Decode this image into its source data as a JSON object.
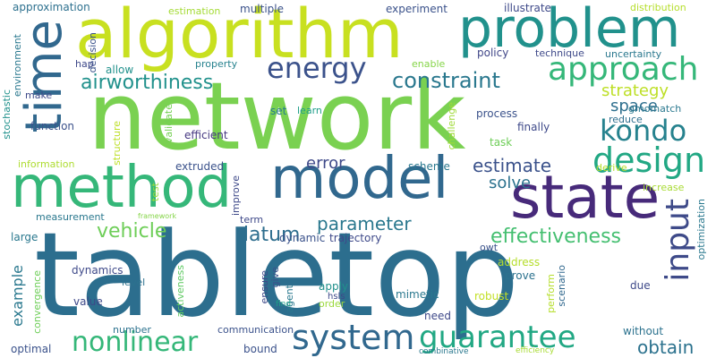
{
  "words": [
    {
      "text": "tabletop",
      "color": "#2c6e8e"
    },
    {
      "text": "network",
      "color": "#7ad151"
    },
    {
      "text": "algorithm",
      "color": "#c8e020"
    },
    {
      "text": "problem",
      "color": "#21918c"
    },
    {
      "text": "time",
      "color": "#31688e"
    },
    {
      "text": "method",
      "color": "#35b779"
    },
    {
      "text": "model",
      "color": "#31688e"
    },
    {
      "text": "state",
      "color": "#472a7a"
    },
    {
      "text": "approach",
      "color": "#35b779"
    },
    {
      "text": "energy",
      "color": "#3b528b"
    },
    {
      "text": "constraint",
      "color": "#2a788e"
    },
    {
      "text": "airworthiness",
      "color": "#21918c"
    },
    {
      "text": "design",
      "color": "#22a884"
    },
    {
      "text": "input",
      "color": "#3e4a89"
    },
    {
      "text": "kondo",
      "color": "#26828e"
    },
    {
      "text": "strategy",
      "color": "#bddf26"
    },
    {
      "text": "space",
      "color": "#2e6f8e"
    },
    {
      "text": "system",
      "color": "#31688e"
    },
    {
      "text": "guarantee",
      "color": "#22a884"
    },
    {
      "text": "nonlinear",
      "color": "#35b779"
    },
    {
      "text": "effectiveness",
      "color": "#44bf70"
    },
    {
      "text": "estimate",
      "color": "#3b528b"
    },
    {
      "text": "parameter",
      "color": "#2a788e"
    },
    {
      "text": "vehicle",
      "color": "#6ece58"
    },
    {
      "text": "datum",
      "color": "#2e6e8e"
    },
    {
      "text": "error",
      "color": "#3e4989"
    },
    {
      "text": "solve",
      "color": "#2c728e"
    },
    {
      "text": "obtain",
      "color": "#2c728e"
    },
    {
      "text": "example",
      "color": "#2a788e"
    },
    {
      "text": "approximation",
      "color": "#2d708e"
    },
    {
      "text": "estimation",
      "color": "#a5db36"
    },
    {
      "text": "multiple",
      "color": "#3b528b"
    },
    {
      "text": "experiment",
      "color": "#3b528b"
    },
    {
      "text": "illustrate",
      "color": "#3e4989"
    },
    {
      "text": "distribution",
      "color": "#b5de2b"
    },
    {
      "text": "technique",
      "color": "#3e4989"
    },
    {
      "text": "uncertainty",
      "color": "#2a788e"
    },
    {
      "text": "policy",
      "color": "#404688"
    },
    {
      "text": "enable",
      "color": "#86d549"
    },
    {
      "text": "property",
      "color": "#26828e"
    },
    {
      "text": "decision",
      "color": "#3b528b"
    },
    {
      "text": "environment",
      "color": "#2a788e"
    },
    {
      "text": "stochastic",
      "color": "#21918c"
    },
    {
      "text": "hap",
      "color": "#3e4989"
    },
    {
      "text": "allow",
      "color": "#21918c"
    },
    {
      "text": "make",
      "color": "#3e4989"
    },
    {
      "text": "learn",
      "color": "#1f9e89"
    },
    {
      "text": "set",
      "color": "#287c8e"
    },
    {
      "text": "process",
      "color": "#3b528b"
    },
    {
      "text": "reduce",
      "color": "#2e6e8e"
    },
    {
      "text": "gmomatch",
      "color": "#2a788e"
    },
    {
      "text": "function",
      "color": "#3b528b"
    },
    {
      "text": "efficient",
      "color": "#453781"
    },
    {
      "text": "finally",
      "color": "#3e4989"
    },
    {
      "text": "challenge",
      "color": "#a0da39"
    },
    {
      "text": "task",
      "color": "#6ece58"
    },
    {
      "text": "structure",
      "color": "#bddf26"
    },
    {
      "text": "validate",
      "color": "#75d054"
    },
    {
      "text": "information",
      "color": "#addc30"
    },
    {
      "text": "extruded",
      "color": "#3b528b"
    },
    {
      "text": "scheme",
      "color": "#2a788e"
    },
    {
      "text": "derive",
      "color": "#b5de2b"
    },
    {
      "text": "increase",
      "color": "#a8db34"
    },
    {
      "text": "test",
      "color": "#9bd93c"
    },
    {
      "text": "improve",
      "color": "#3e4989"
    },
    {
      "text": "measurement",
      "color": "#2a788e"
    },
    {
      "text": "framework",
      "color": "#86d549"
    },
    {
      "text": "term",
      "color": "#3e4989"
    },
    {
      "text": "dynamic",
      "color": "#3b528b"
    },
    {
      "text": "trajectory",
      "color": "#3e4989"
    },
    {
      "text": "owt",
      "color": "#3b528b"
    },
    {
      "text": "large",
      "color": "#2a788e"
    },
    {
      "text": "optimization",
      "color": "#2a788e"
    },
    {
      "text": "address",
      "color": "#b5de2b"
    },
    {
      "text": "dynamics",
      "color": "#3e4989"
    },
    {
      "text": "level",
      "color": "#2c728e"
    },
    {
      "text": "convergence",
      "color": "#6ece58"
    },
    {
      "text": "activeness",
      "color": "#5ec962"
    },
    {
      "text": "ensure",
      "color": "#3e4989"
    },
    {
      "text": "give",
      "color": "#3b528b"
    },
    {
      "text": "agent",
      "color": "#2a788e"
    },
    {
      "text": "apply",
      "color": "#21918c"
    },
    {
      "text": "prove",
      "color": "#2c728e"
    },
    {
      "text": "hsls",
      "color": "#3e4989"
    },
    {
      "text": "scenario",
      "color": "#31688e"
    },
    {
      "text": "perform",
      "color": "#b5de2b"
    },
    {
      "text": "due",
      "color": "#3e4989"
    },
    {
      "text": "mimetic",
      "color": "#2a788e"
    },
    {
      "text": "value",
      "color": "#3e4989"
    },
    {
      "text": "robust",
      "color": "#c2df23"
    },
    {
      "text": "find",
      "color": "#1fa187"
    },
    {
      "text": "need",
      "color": "#3e4989"
    },
    {
      "text": "number",
      "color": "#2c728e"
    },
    {
      "text": "communication",
      "color": "#3b528b"
    },
    {
      "text": "without",
      "color": "#2c728e"
    },
    {
      "text": "optimal",
      "color": "#3b528b"
    },
    {
      "text": "bound",
      "color": "#3b528b"
    },
    {
      "text": "combinative",
      "color": "#2a788e"
    },
    {
      "text": "efficiency",
      "color": "#a8db34"
    },
    {
      "text": "order",
      "color": "#9bd93c"
    }
  ]
}
